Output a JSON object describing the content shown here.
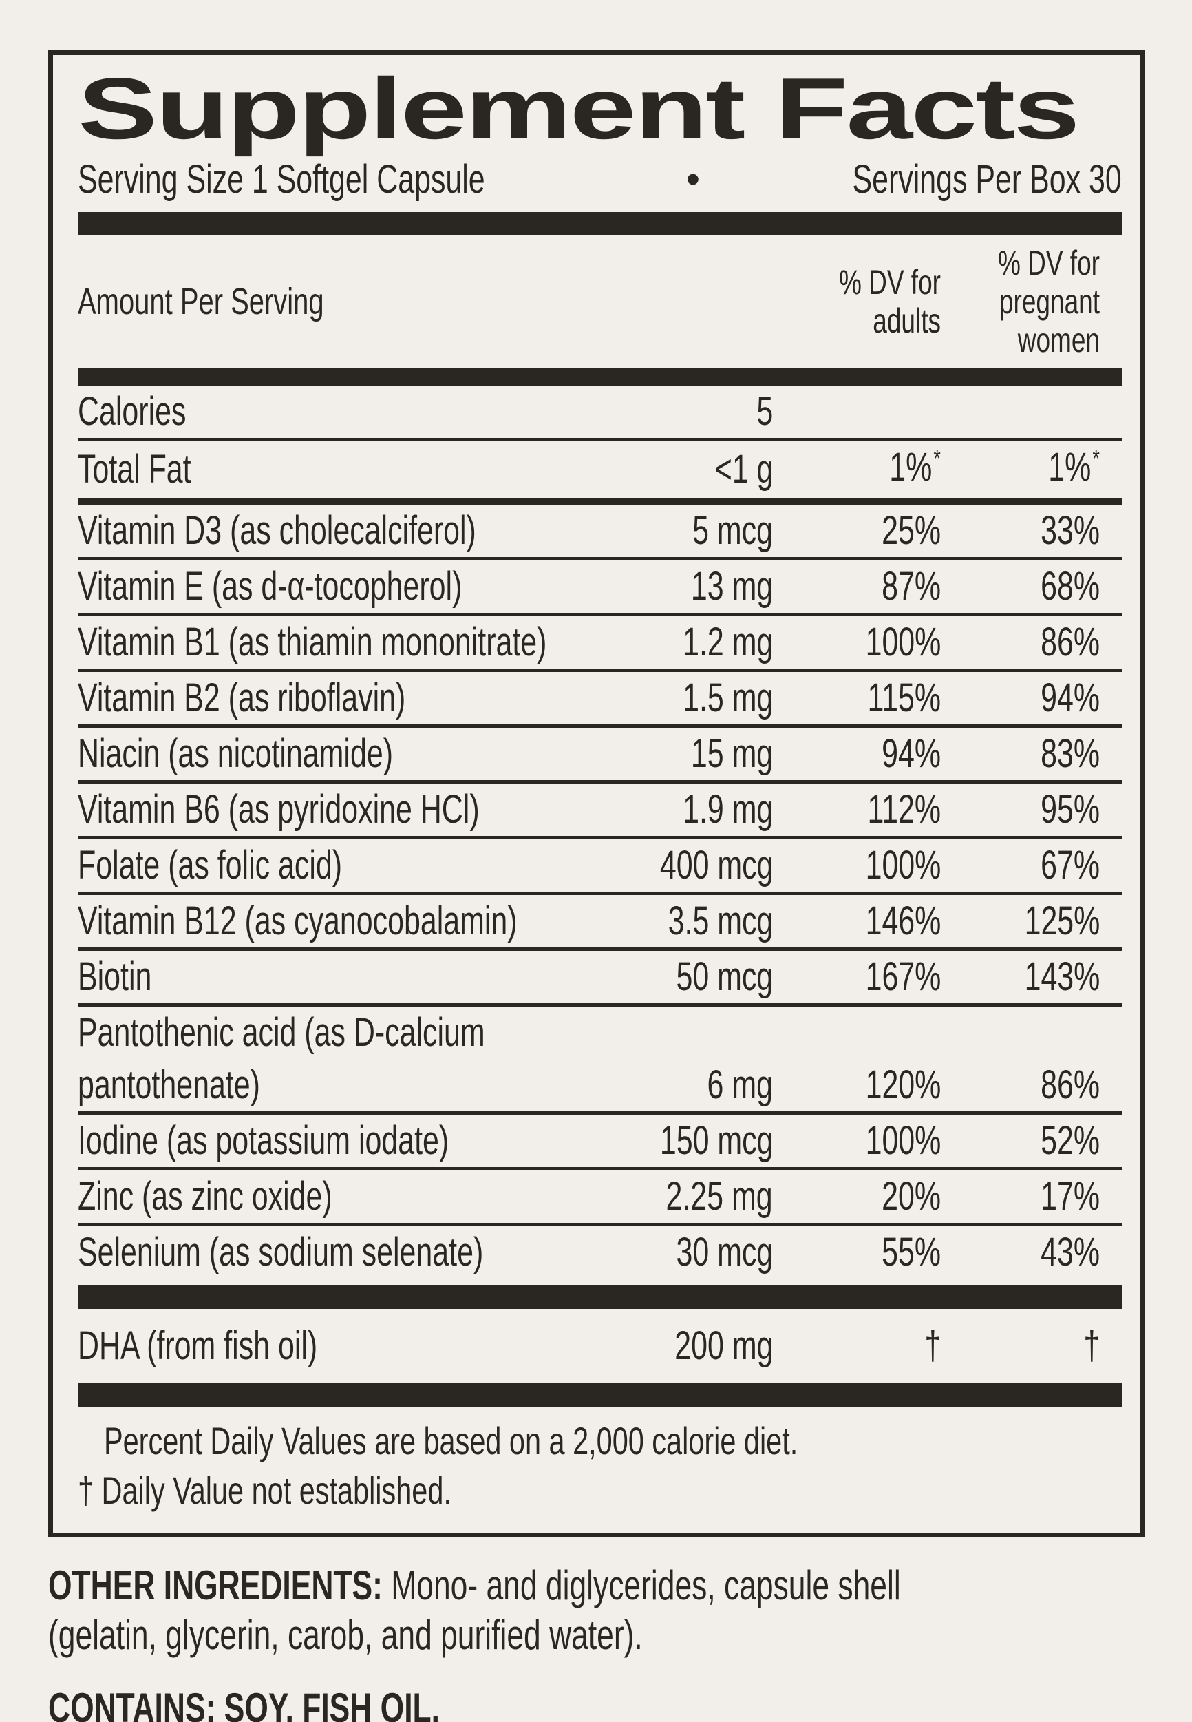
{
  "colors": {
    "background": "#f2eee9",
    "ink": "#2a2622"
  },
  "header": {
    "title": "Supplement Facts",
    "serving_size": "Serving Size 1 Softgel Capsule",
    "bullet": "•",
    "servings_per_box": "Servings Per Box 30"
  },
  "columns": {
    "amount": "Amount Per Serving",
    "dv_adults_lines": [
      "% DV for",
      "adults"
    ],
    "dv_pregnant_lines": [
      "% DV for",
      "pregnant",
      "women"
    ]
  },
  "table": {
    "rows": [
      {
        "name": "Calories",
        "amount": "5",
        "dv_adults": "",
        "dv_pregnant": "",
        "rule": "thin"
      },
      {
        "name": "Total Fat",
        "amount": "<1 g",
        "dv_adults": "1%",
        "dv_adults_sup": "*",
        "dv_pregnant": "1%",
        "dv_pregnant_sup": "*",
        "rule": "medium"
      },
      {
        "name": "Vitamin D3 (as cholecalciferol)",
        "amount": "5 mcg",
        "dv_adults": "25%",
        "dv_pregnant": "33%",
        "rule": "thin"
      },
      {
        "name": "Vitamin E (as d-α-tocopherol)",
        "amount": "13 mg",
        "dv_adults": "87%",
        "dv_pregnant": "68%",
        "rule": "thin"
      },
      {
        "name": "Vitamin B1 (as thiamin mononitrate)",
        "amount": "1.2 mg",
        "dv_adults": "100%",
        "dv_pregnant": "86%",
        "rule": "thin"
      },
      {
        "name": "Vitamin B2 (as riboflavin)",
        "amount": "1.5 mg",
        "dv_adults": "115%",
        "dv_pregnant": "94%",
        "rule": "thin"
      },
      {
        "name": "Niacin (as nicotinamide)",
        "amount": "15 mg",
        "dv_adults": "94%",
        "dv_pregnant": "83%",
        "rule": "thin"
      },
      {
        "name": "Vitamin B6 (as pyridoxine HCl)",
        "amount": "1.9 mg",
        "dv_adults": "112%",
        "dv_pregnant": "95%",
        "rule": "thin"
      },
      {
        "name": "Folate (as folic acid)",
        "amount": "400 mcg",
        "dv_adults": "100%",
        "dv_pregnant": "67%",
        "rule": "thin"
      },
      {
        "name": "Vitamin B12 (as cyanocobalamin)",
        "amount": "3.5 mcg",
        "dv_adults": "146%",
        "dv_pregnant": "125%",
        "rule": "thin"
      },
      {
        "name": "Biotin",
        "amount": "50 mcg",
        "dv_adults": "167%",
        "dv_pregnant": "143%",
        "rule": "thin"
      },
      {
        "name_lines": [
          "Pantothenic acid (as D-calcium",
          "pantothenate)"
        ],
        "amount": "6 mg",
        "dv_adults": "120%",
        "dv_pregnant": "86%",
        "rule": "thin"
      },
      {
        "name": "Iodine (as potassium iodate)",
        "amount": "150 mcg",
        "dv_adults": "100%",
        "dv_pregnant": "52%",
        "rule": "thin"
      },
      {
        "name": "Zinc (as zinc oxide)",
        "amount": "2.25 mg",
        "dv_adults": "20%",
        "dv_pregnant": "17%",
        "rule": "thin"
      },
      {
        "name": "Selenium (as sodium selenate)",
        "amount": "30 mcg",
        "dv_adults": "55%",
        "dv_pregnant": "43%",
        "rule": "bar"
      },
      {
        "name": "DHA (from fish oil)",
        "amount": "200 mg",
        "dv_adults": "†",
        "dv_pregnant": "†",
        "tall": true,
        "rule": "bar"
      }
    ]
  },
  "footnotes": {
    "percent_dv": "Percent Daily Values are based on a 2,000 calorie diet.",
    "dagger": "† Daily Value not established."
  },
  "other_ingredients": {
    "label": "OTHER INGREDIENTS:",
    "rest_line1": " Mono- and diglycerides, capsule shell",
    "line2": "(gelatin, glycerin, carob, and purified water)."
  },
  "contains": {
    "text": "CONTAINS: SOY, FISH OIL."
  }
}
